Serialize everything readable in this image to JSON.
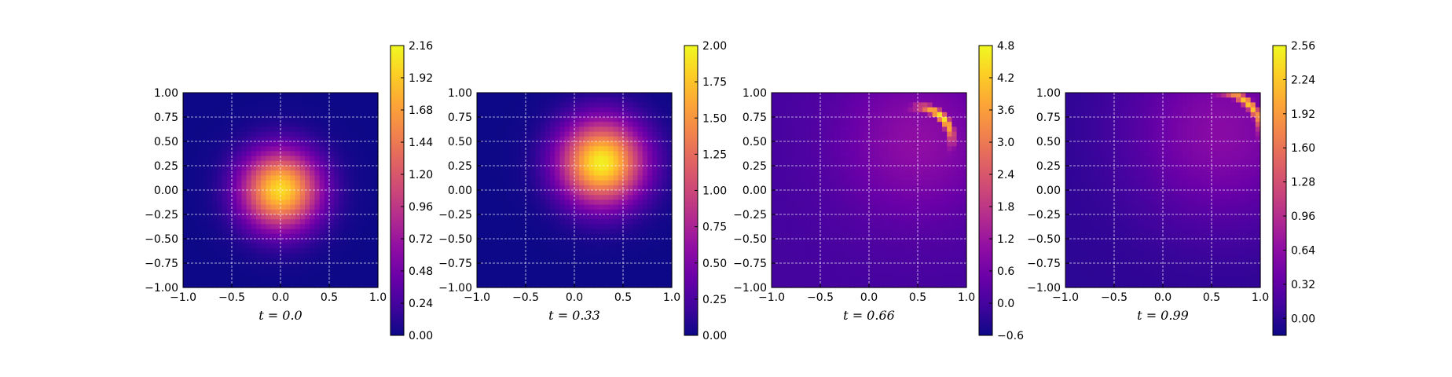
{
  "chart_data": [
    {
      "type": "heatmap",
      "title": "",
      "caption": "t = 0.0",
      "xlim": [
        -1.0,
        1.0
      ],
      "ylim": [
        -1.0,
        1.0
      ],
      "xticks": [
        "−1.0",
        "−0.5",
        "0.0",
        "0.5",
        "1.0"
      ],
      "yticks": [
        "1.00",
        "0.75",
        "0.50",
        "0.25",
        "0.00",
        "−0.25",
        "−0.50",
        "−0.75",
        "−1.00"
      ],
      "grid": true,
      "colormap": "plasma",
      "colorbar": {
        "min": 0.0,
        "max": 2.16,
        "ticks": [
          "2.16",
          "1.92",
          "1.68",
          "1.44",
          "1.20",
          "0.96",
          "0.72",
          "0.48",
          "0.24",
          "0.00"
        ]
      },
      "field": {
        "shape": "gaussian",
        "center": [
          0.0,
          0.0
        ],
        "peak": 2.0,
        "sigma": 0.28
      }
    },
    {
      "type": "heatmap",
      "title": "",
      "caption": "t = 0.33",
      "xlim": [
        -1.0,
        1.0
      ],
      "ylim": [
        -1.0,
        1.0
      ],
      "xticks": [
        "−1.0",
        "−0.5",
        "0.0",
        "0.5",
        "1.0"
      ],
      "yticks": [
        "1.00",
        "0.75",
        "0.50",
        "0.25",
        "0.00",
        "−0.25",
        "−0.50",
        "−0.75",
        "−1.00"
      ],
      "grid": true,
      "colormap": "plasma",
      "colorbar": {
        "min": 0.0,
        "max": 2.0,
        "ticks": [
          "2.00",
          "1.75",
          "1.50",
          "1.25",
          "1.00",
          "0.75",
          "0.50",
          "0.25",
          "0.00"
        ]
      },
      "field": {
        "shape": "gaussian",
        "center": [
          0.28,
          0.28
        ],
        "peak": 1.95,
        "sigma": 0.3
      }
    },
    {
      "type": "heatmap",
      "title": "",
      "caption": "t = 0.66",
      "xlim": [
        -1.0,
        1.0
      ],
      "ylim": [
        -1.0,
        1.0
      ],
      "xticks": [
        "−1.0",
        "−0.5",
        "0.0",
        "0.5",
        "1.0"
      ],
      "yticks": [
        "1.00",
        "0.75",
        "0.50",
        "0.25",
        "0.00",
        "−0.25",
        "−0.50",
        "−0.75",
        "−1.00"
      ],
      "grid": true,
      "colormap": "plasma",
      "colorbar": {
        "min": -0.6,
        "max": 4.8,
        "ticks": [
          "4.8",
          "4.2",
          "3.6",
          "3.0",
          "2.4",
          "1.8",
          "1.2",
          "0.6",
          "0.0",
          "−0.6"
        ]
      },
      "field": {
        "shape": "front",
        "center": [
          0.5,
          0.5
        ],
        "base": 1.0,
        "front_value": 4.6,
        "front_radius": 0.35,
        "spread": 0.55
      }
    },
    {
      "type": "heatmap",
      "title": "",
      "caption": "t = 0.99",
      "xlim": [
        -1.0,
        1.0
      ],
      "ylim": [
        -1.0,
        1.0
      ],
      "xticks": [
        "−1.0",
        "−0.5",
        "0.0",
        "0.5",
        "1.0"
      ],
      "yticks": [
        "1.00",
        "0.75",
        "0.50",
        "0.25",
        "0.00",
        "−0.25",
        "−0.50",
        "−0.75",
        "−1.00"
      ],
      "grid": true,
      "colormap": "plasma",
      "colorbar": {
        "min": -0.16,
        "max": 2.56,
        "ticks": [
          "2.56",
          "2.24",
          "1.92",
          "1.60",
          "1.28",
          "0.96",
          "0.64",
          "0.32",
          "0.00"
        ]
      },
      "field": {
        "shape": "front",
        "center": [
          0.6,
          0.6
        ],
        "base": 0.6,
        "front_value": 2.3,
        "front_radius": 0.4,
        "spread": 0.65
      }
    }
  ]
}
